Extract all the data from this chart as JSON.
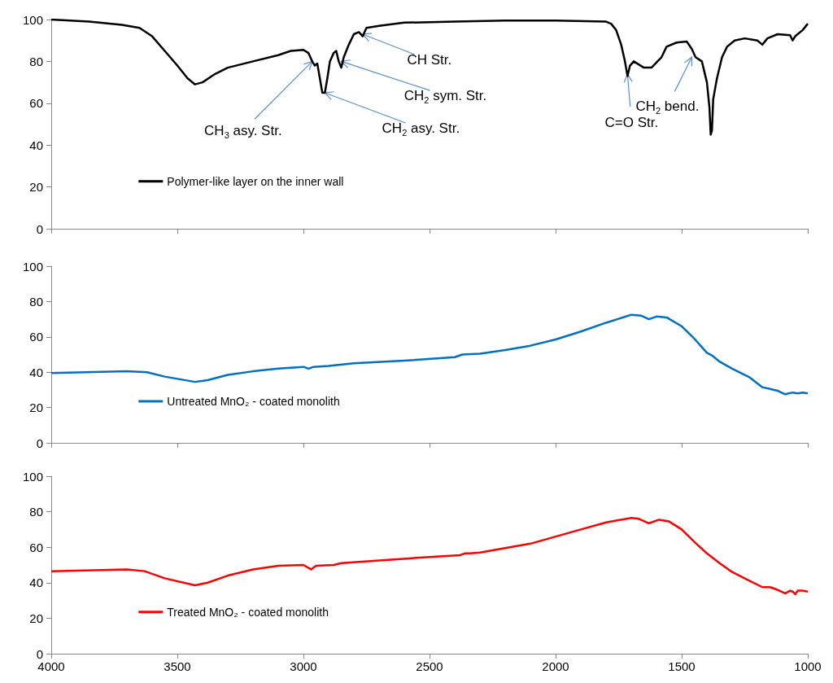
{
  "chart_data": [
    {
      "type": "line",
      "xlim": [
        4000,
        1000
      ],
      "xticks": [
        4000,
        3500,
        3000,
        2500,
        2000,
        1500,
        1000
      ],
      "ylim": [
        0,
        100
      ],
      "yticks": [
        0,
        20,
        40,
        60,
        80,
        100
      ],
      "tick_labels": "y",
      "grid": false,
      "legend": "bottom left",
      "series": [
        {
          "name": "Polymer-like layer on the inner wall",
          "color": "#000000",
          "x": [
            4000,
            3850,
            3720,
            3650,
            3600,
            3550,
            3500,
            3460,
            3430,
            3400,
            3350,
            3300,
            3200,
            3100,
            3050,
            3000,
            2980,
            2965,
            2955,
            2945,
            2935,
            2925,
            2915,
            2905,
            2895,
            2880,
            2870,
            2860,
            2850,
            2840,
            2820,
            2800,
            2780,
            2765,
            2750,
            2700,
            2600,
            2400,
            2200,
            2000,
            1800,
            1780,
            1760,
            1740,
            1725,
            1715,
            1705,
            1690,
            1650,
            1620,
            1580,
            1560,
            1520,
            1480,
            1460,
            1445,
            1420,
            1400,
            1390,
            1385,
            1380,
            1375,
            1360,
            1340,
            1320,
            1290,
            1250,
            1200,
            1180,
            1160,
            1120,
            1070,
            1060,
            1050,
            1020,
            1000
          ],
          "values": [
            100,
            99,
            97.5,
            96,
            92,
            85,
            78,
            72,
            69,
            70,
            74,
            77,
            80,
            83,
            85,
            85.5,
            84,
            80,
            78,
            79,
            72,
            65,
            65,
            72,
            80,
            84,
            85,
            80,
            77,
            82,
            88,
            93,
            94,
            92,
            96,
            97,
            98.5,
            99,
            99.5,
            99.5,
            99,
            98,
            95,
            88,
            80,
            73,
            78,
            80,
            77,
            77,
            82,
            87,
            89,
            89.5,
            86,
            82,
            80,
            70,
            58,
            45,
            47,
            62,
            72,
            82,
            87,
            90,
            91,
            90,
            88,
            91,
            93,
            92.5,
            90,
            92,
            95,
            98
          ]
        }
      ],
      "annotations": [
        {
          "text": "CH$_{3}$ asy. Str.",
          "x": 2965,
          "y": 80
        },
        {
          "text": "CH$_{2}$ asy. Str.",
          "x": 2915,
          "y": 65
        },
        {
          "text": "CH$_{2}$ sym. Str.",
          "x": 2850,
          "y": 80
        },
        {
          "text": "CH Str.",
          "x": 2765,
          "y": 93
        },
        {
          "text": "C=O Str.",
          "x": 1715,
          "y": 74
        },
        {
          "text": "CH$_{2}$ bend.",
          "x": 1460,
          "y": 82
        }
      ]
    },
    {
      "type": "line",
      "xlim": [
        4000,
        1000
      ],
      "xticks": [
        4000,
        3500,
        3000,
        2500,
        2000,
        1500,
        1000
      ],
      "ylim": [
        0,
        100
      ],
      "yticks": [
        0,
        20,
        40,
        60,
        80,
        100
      ],
      "tick_labels": "y",
      "grid": false,
      "legend": "bottom left",
      "series": [
        {
          "name": "Untreated MnO₂ - coated monolith",
          "color": "#0070c0",
          "x": [
            4000,
            3700,
            3620,
            3550,
            3430,
            3380,
            3300,
            3200,
            3100,
            3000,
            2980,
            2960,
            2900,
            2800,
            2600,
            2400,
            2370,
            2300,
            2200,
            2100,
            2000,
            1900,
            1800,
            1700,
            1660,
            1630,
            1600,
            1560,
            1500,
            1450,
            1400,
            1380,
            1350,
            1300,
            1230,
            1180,
            1150,
            1120,
            1090,
            1060,
            1040,
            1020,
            1000
          ],
          "values": [
            39.5,
            40.5,
            40,
            37.5,
            34.5,
            35.5,
            38.5,
            40.5,
            42,
            43,
            42,
            43,
            43.5,
            45,
            46.5,
            48.5,
            50,
            50.5,
            52.5,
            55,
            58.5,
            63,
            68,
            72.5,
            72,
            70,
            71.5,
            71,
            66,
            59,
            51,
            49.5,
            46,
            42,
            37,
            31.5,
            30.5,
            29.5,
            27.5,
            28.5,
            28,
            28.5,
            28
          ]
        }
      ]
    },
    {
      "type": "line",
      "xlim": [
        4000,
        1000
      ],
      "xticks": [
        4000,
        3500,
        3000,
        2500,
        2000,
        1500,
        1000
      ],
      "ylim": [
        0,
        100
      ],
      "yticks": [
        0,
        20,
        40,
        60,
        80,
        100
      ],
      "grid": false,
      "legend": "bottom left",
      "series": [
        {
          "name": "Treated MnO₂ - coated monolith",
          "color": "#ff0000",
          "x": [
            4000,
            3700,
            3630,
            3550,
            3430,
            3380,
            3300,
            3200,
            3100,
            3000,
            2970,
            2950,
            2880,
            2850,
            2700,
            2500,
            2380,
            2360,
            2340,
            2300,
            2200,
            2100,
            2000,
            1900,
            1800,
            1700,
            1670,
            1630,
            1590,
            1550,
            1500,
            1450,
            1400,
            1350,
            1300,
            1230,
            1180,
            1150,
            1120,
            1090,
            1070,
            1060,
            1050,
            1040,
            1020,
            1000
          ],
          "values": [
            46.5,
            47.5,
            46.5,
            42.5,
            38.5,
            40,
            44,
            47.5,
            49.5,
            50,
            47.5,
            49.5,
            50,
            51,
            52.5,
            54.5,
            55.5,
            56.5,
            56.5,
            57,
            59.5,
            62,
            66,
            70,
            74,
            76.5,
            76,
            73.5,
            75.5,
            74.5,
            70,
            63,
            56.5,
            51,
            46,
            41,
            37.5,
            37.5,
            36,
            34,
            35.5,
            35,
            33.5,
            35.5,
            35.5,
            35
          ]
        }
      ]
    }
  ]
}
